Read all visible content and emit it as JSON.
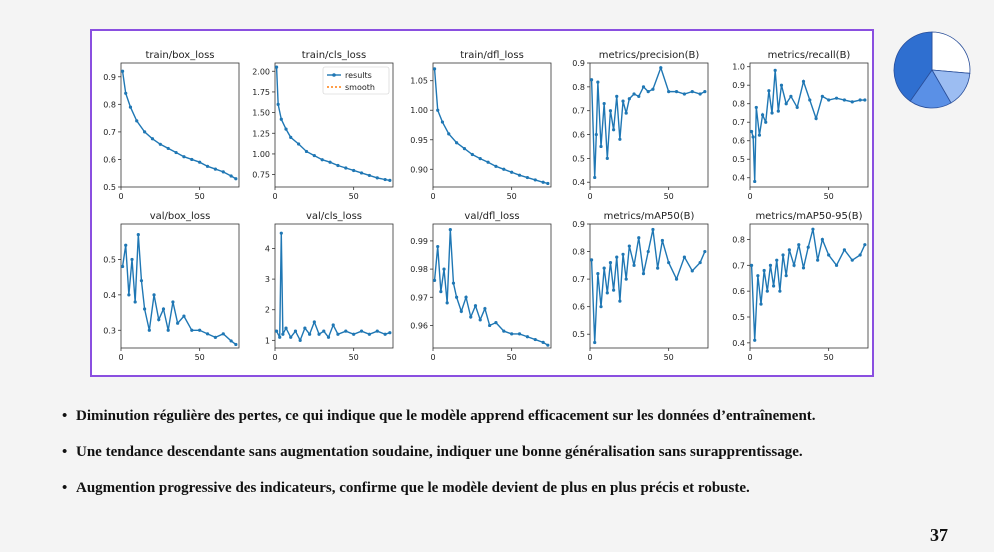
{
  "slide": {
    "bullets": [
      "Diminution régulière des pertes,  ce qui indique que le modèle apprend efficacement sur les données d’entraînement.",
      "Une tendance descendante sans augmentation soudaine, indiquer une bonne généralisation sans surapprentissage.",
      "Augmention progressive des indicateurs, confirme que le modèle devient de plus en plus précis et robuste."
    ],
    "page_number": "37",
    "bullet_char": "•"
  },
  "colors": {
    "frame_border": "#8a4fe0",
    "series_results": "#1f77b4",
    "series_smooth": "#ff7f0e",
    "pie": [
      "#2f6fd0",
      "#5a90e6",
      "#9cbdf2",
      "#ffffff"
    ]
  },
  "legend": {
    "results": "results",
    "smooth": "smooth"
  },
  "chart_data": [
    {
      "type": "line",
      "title": "train/box_loss",
      "xlim": [
        0,
        75
      ],
      "xticks": [
        0,
        50
      ],
      "ylim": [
        0.5,
        0.95
      ],
      "yticks": [
        0.5,
        0.6,
        0.7,
        0.8,
        0.9
      ],
      "ytick_labels": [
        "0.5",
        "0.6",
        "0.7",
        "0.8",
        "0.9"
      ],
      "x": [
        1,
        3,
        6,
        10,
        15,
        20,
        25,
        30,
        35,
        40,
        45,
        50,
        55,
        60,
        65,
        70,
        73
      ],
      "series": [
        {
          "name": "results",
          "values": [
            0.92,
            0.84,
            0.79,
            0.74,
            0.7,
            0.675,
            0.655,
            0.64,
            0.625,
            0.61,
            0.6,
            0.59,
            0.575,
            0.565,
            0.555,
            0.54,
            0.53
          ]
        }
      ]
    },
    {
      "type": "line",
      "title": "train/cls_loss",
      "legend": true,
      "xlim": [
        0,
        75
      ],
      "xticks": [
        0,
        50
      ],
      "ylim": [
        0.6,
        2.1
      ],
      "yticks": [
        0.75,
        1.0,
        1.25,
        1.5,
        1.75,
        2.0
      ],
      "ytick_labels": [
        "0.75",
        "1.00",
        "1.25",
        "1.50",
        "1.75",
        "2.00"
      ],
      "x": [
        1,
        2,
        4,
        7,
        10,
        15,
        20,
        25,
        30,
        35,
        40,
        45,
        50,
        55,
        60,
        65,
        70,
        73
      ],
      "series": [
        {
          "name": "results",
          "values": [
            2.05,
            1.6,
            1.42,
            1.3,
            1.2,
            1.12,
            1.03,
            0.98,
            0.93,
            0.9,
            0.86,
            0.83,
            0.8,
            0.77,
            0.74,
            0.71,
            0.69,
            0.68
          ]
        }
      ]
    },
    {
      "type": "line",
      "title": "train/dfl_loss",
      "xlim": [
        0,
        75
      ],
      "xticks": [
        0,
        50
      ],
      "ylim": [
        0.87,
        1.08
      ],
      "yticks": [
        0.9,
        0.95,
        1.0,
        1.05
      ],
      "ytick_labels": [
        "0.90",
        "0.95",
        "1.00",
        "1.05"
      ],
      "x": [
        1,
        3,
        6,
        10,
        15,
        20,
        25,
        30,
        35,
        40,
        45,
        50,
        55,
        60,
        65,
        70,
        73
      ],
      "series": [
        {
          "name": "results",
          "values": [
            1.07,
            1.0,
            0.98,
            0.96,
            0.945,
            0.935,
            0.925,
            0.918,
            0.912,
            0.905,
            0.9,
            0.895,
            0.89,
            0.886,
            0.882,
            0.878,
            0.876
          ]
        }
      ]
    },
    {
      "type": "line",
      "title": "metrics/precision(B)",
      "xlim": [
        0,
        75
      ],
      "xticks": [
        0,
        50
      ],
      "ylim": [
        0.38,
        0.9
      ],
      "yticks": [
        0.4,
        0.5,
        0.6,
        0.7,
        0.8,
        0.9
      ],
      "ytick_labels": [
        "0.4",
        "0.5",
        "0.6",
        "0.7",
        "0.8",
        "0.9"
      ],
      "x": [
        1,
        3,
        4,
        5,
        7,
        9,
        11,
        13,
        15,
        17,
        19,
        21,
        23,
        25,
        28,
        31,
        34,
        37,
        40,
        45,
        50,
        55,
        60,
        65,
        70,
        73
      ],
      "series": [
        {
          "name": "results",
          "values": [
            0.83,
            0.42,
            0.6,
            0.82,
            0.55,
            0.73,
            0.5,
            0.7,
            0.62,
            0.76,
            0.58,
            0.74,
            0.69,
            0.75,
            0.77,
            0.76,
            0.8,
            0.78,
            0.79,
            0.88,
            0.78,
            0.78,
            0.77,
            0.78,
            0.77,
            0.78
          ]
        }
      ]
    },
    {
      "type": "line",
      "title": "metrics/recall(B)",
      "xlim": [
        0,
        75
      ],
      "xticks": [
        0,
        50
      ],
      "ylim": [
        0.35,
        1.02
      ],
      "yticks": [
        0.4,
        0.5,
        0.6,
        0.7,
        0.8,
        0.9,
        1.0
      ],
      "ytick_labels": [
        "0.4",
        "0.5",
        "0.6",
        "0.7",
        "0.8",
        "0.9",
        "1.0"
      ],
      "x": [
        1,
        2,
        3,
        4,
        6,
        8,
        10,
        12,
        14,
        16,
        18,
        20,
        23,
        26,
        30,
        34,
        38,
        42,
        46,
        50,
        55,
        60,
        65,
        70,
        73
      ],
      "series": [
        {
          "name": "results",
          "values": [
            0.65,
            0.62,
            0.38,
            0.78,
            0.63,
            0.74,
            0.7,
            0.87,
            0.75,
            0.98,
            0.76,
            0.9,
            0.8,
            0.84,
            0.78,
            0.92,
            0.82,
            0.72,
            0.84,
            0.82,
            0.83,
            0.82,
            0.81,
            0.82,
            0.82
          ]
        }
      ]
    },
    {
      "type": "line",
      "title": "val/box_loss",
      "xlim": [
        0,
        75
      ],
      "xticks": [
        0,
        50
      ],
      "ylim": [
        0.25,
        0.6
      ],
      "yticks": [
        0.3,
        0.4,
        0.5
      ],
      "ytick_labels": [
        "0.3",
        "0.4",
        "0.5"
      ],
      "x": [
        1,
        3,
        5,
        7,
        9,
        11,
        13,
        15,
        18,
        21,
        24,
        27,
        30,
        33,
        36,
        40,
        45,
        50,
        55,
        60,
        65,
        70,
        73
      ],
      "series": [
        {
          "name": "results",
          "values": [
            0.48,
            0.54,
            0.4,
            0.5,
            0.38,
            0.57,
            0.44,
            0.36,
            0.3,
            0.4,
            0.33,
            0.36,
            0.3,
            0.38,
            0.32,
            0.34,
            0.3,
            0.3,
            0.29,
            0.28,
            0.29,
            0.27,
            0.26
          ]
        }
      ]
    },
    {
      "type": "line",
      "title": "val/cls_loss",
      "xlim": [
        0,
        75
      ],
      "xticks": [
        0,
        50
      ],
      "ylim": [
        0.75,
        4.8
      ],
      "yticks": [
        1,
        2,
        3,
        4
      ],
      "ytick_labels": [
        "1",
        "2",
        "3",
        "4"
      ],
      "x": [
        1,
        3,
        4,
        5,
        7,
        10,
        13,
        16,
        19,
        22,
        25,
        28,
        31,
        34,
        37,
        40,
        45,
        50,
        55,
        60,
        65,
        70,
        73
      ],
      "series": [
        {
          "name": "results",
          "values": [
            1.3,
            1.1,
            4.5,
            1.2,
            1.4,
            1.1,
            1.3,
            1.0,
            1.4,
            1.2,
            1.6,
            1.2,
            1.3,
            1.1,
            1.5,
            1.2,
            1.3,
            1.2,
            1.3,
            1.2,
            1.3,
            1.2,
            1.25
          ]
        }
      ]
    },
    {
      "type": "line",
      "title": "val/dfl_loss",
      "xlim": [
        0,
        75
      ],
      "xticks": [
        0,
        50
      ],
      "ylim": [
        0.952,
        0.996
      ],
      "yticks": [
        0.96,
        0.97,
        0.98,
        0.99
      ],
      "ytick_labels": [
        "0.96",
        "0.97",
        "0.98",
        "0.99"
      ],
      "x": [
        1,
        3,
        5,
        7,
        9,
        11,
        13,
        15,
        18,
        21,
        24,
        27,
        30,
        33,
        36,
        40,
        45,
        50,
        55,
        60,
        65,
        70,
        73
      ],
      "series": [
        {
          "name": "results",
          "values": [
            0.976,
            0.988,
            0.972,
            0.98,
            0.968,
            0.994,
            0.975,
            0.97,
            0.965,
            0.97,
            0.963,
            0.967,
            0.962,
            0.966,
            0.96,
            0.961,
            0.958,
            0.957,
            0.957,
            0.956,
            0.955,
            0.954,
            0.953
          ]
        }
      ]
    },
    {
      "type": "line",
      "title": "metrics/mAP50(B)",
      "xlim": [
        0,
        75
      ],
      "xticks": [
        0,
        50
      ],
      "ylim": [
        0.45,
        0.9
      ],
      "yticks": [
        0.5,
        0.6,
        0.7,
        0.8,
        0.9
      ],
      "ytick_labels": [
        "0.5",
        "0.6",
        "0.7",
        "0.8",
        "0.9"
      ],
      "x": [
        1,
        3,
        5,
        7,
        9,
        11,
        13,
        15,
        17,
        19,
        21,
        23,
        25,
        28,
        31,
        34,
        37,
        40,
        43,
        46,
        50,
        55,
        60,
        65,
        70,
        73
      ],
      "series": [
        {
          "name": "results",
          "values": [
            0.77,
            0.47,
            0.72,
            0.6,
            0.74,
            0.65,
            0.76,
            0.66,
            0.78,
            0.62,
            0.79,
            0.7,
            0.82,
            0.75,
            0.85,
            0.72,
            0.8,
            0.88,
            0.74,
            0.84,
            0.76,
            0.7,
            0.78,
            0.73,
            0.76,
            0.8
          ]
        }
      ]
    },
    {
      "type": "line",
      "title": "metrics/mAP50-95(B)",
      "xlim": [
        0,
        75
      ],
      "xticks": [
        0,
        50
      ],
      "ylim": [
        0.38,
        0.86
      ],
      "yticks": [
        0.4,
        0.5,
        0.6,
        0.7,
        0.8
      ],
      "ytick_labels": [
        "0.4",
        "0.5",
        "0.6",
        "0.7",
        "0.8"
      ],
      "x": [
        1,
        3,
        5,
        7,
        9,
        11,
        13,
        15,
        17,
        19,
        21,
        23,
        25,
        28,
        31,
        34,
        37,
        40,
        43,
        46,
        50,
        55,
        60,
        65,
        70,
        73
      ],
      "series": [
        {
          "name": "results",
          "values": [
            0.7,
            0.41,
            0.66,
            0.55,
            0.68,
            0.6,
            0.7,
            0.62,
            0.72,
            0.6,
            0.74,
            0.66,
            0.76,
            0.7,
            0.78,
            0.69,
            0.77,
            0.84,
            0.72,
            0.8,
            0.74,
            0.7,
            0.76,
            0.72,
            0.74,
            0.78
          ]
        }
      ]
    }
  ]
}
